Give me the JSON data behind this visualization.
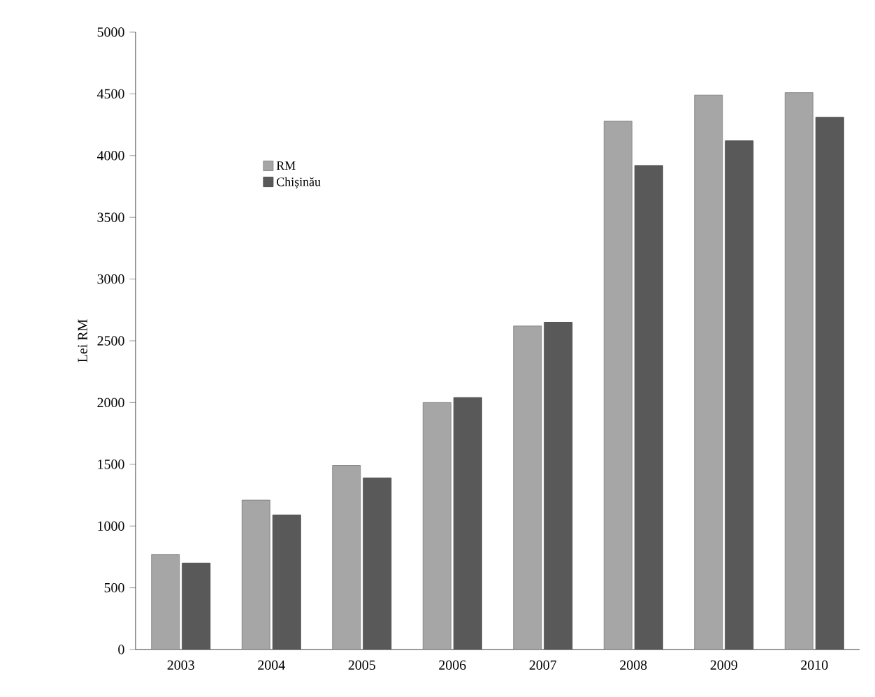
{
  "chart_data": {
    "type": "bar",
    "ylabel": "Lei RM",
    "categories": [
      "2003",
      "2004",
      "2005",
      "2006",
      "2007",
      "2008",
      "2009",
      "2010"
    ],
    "series": [
      {
        "name": "RM",
        "color": "#a6a6a6",
        "values": [
          770,
          1210,
          1490,
          2000,
          2620,
          4280,
          4490,
          4510
        ]
      },
      {
        "name": "Chișinău",
        "color": "#595959",
        "values": [
          700,
          1090,
          1390,
          2040,
          2650,
          3920,
          4120,
          4310
        ]
      }
    ],
    "ylim": [
      0,
      5000
    ],
    "yticks": [
      0,
      500,
      1000,
      1500,
      2000,
      2500,
      3000,
      3500,
      4000,
      4500,
      5000
    ],
    "grid": false,
    "legend": "top left"
  }
}
